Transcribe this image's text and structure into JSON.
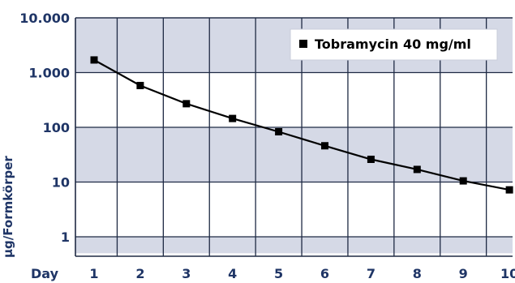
{
  "chart_data": {
    "type": "line",
    "y_scale": "log",
    "ylim": [
      0.5,
      10000
    ],
    "xlim": [
      0.4,
      10.05
    ],
    "ylabel": "µg/Formkörper",
    "x_prefix": "Day",
    "x_ticks": [
      "1",
      "2",
      "3",
      "4",
      "5",
      "6",
      "7",
      "8",
      "9",
      "10"
    ],
    "y_ticks": [
      {
        "value": 1,
        "label": "1"
      },
      {
        "value": 10,
        "label": "10"
      },
      {
        "value": 100,
        "label": "100"
      },
      {
        "value": 1000,
        "label": "1.000"
      },
      {
        "value": 10000,
        "label": "10.000"
      }
    ],
    "grid": true,
    "legend_position": "top-right",
    "series": [
      {
        "name": "Tobramycin 40 mg/ml",
        "marker": "square",
        "color": "#000000",
        "x": [
          1,
          2,
          3,
          4,
          5,
          6,
          7,
          8,
          9,
          10
        ],
        "y": [
          1700,
          580,
          270,
          145,
          83,
          46,
          26,
          17,
          10.5,
          7.2
        ]
      }
    ],
    "colors": {
      "band": "#d5d9e6",
      "grid": "#1f2a44",
      "text": "#1f3566"
    }
  }
}
